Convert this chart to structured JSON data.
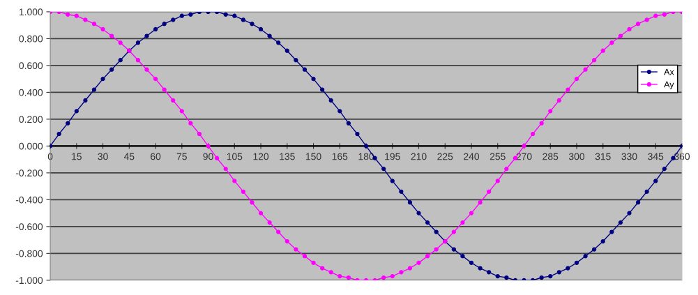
{
  "chart_data": {
    "type": "line",
    "x": [
      0,
      5,
      10,
      15,
      20,
      25,
      30,
      35,
      40,
      45,
      50,
      55,
      60,
      65,
      70,
      75,
      80,
      85,
      90,
      95,
      100,
      105,
      110,
      115,
      120,
      125,
      130,
      135,
      140,
      145,
      150,
      155,
      160,
      165,
      170,
      175,
      180,
      185,
      190,
      195,
      200,
      205,
      210,
      215,
      220,
      225,
      230,
      235,
      240,
      245,
      250,
      255,
      260,
      265,
      270,
      275,
      280,
      285,
      290,
      295,
      300,
      305,
      310,
      315,
      320,
      325,
      330,
      335,
      340,
      345,
      350,
      355,
      360
    ],
    "series": [
      {
        "name": "Ax",
        "color": "#000080",
        "values": [
          0,
          0.09,
          0.17,
          0.26,
          0.34,
          0.42,
          0.5,
          0.57,
          0.64,
          0.71,
          0.77,
          0.82,
          0.87,
          0.91,
          0.94,
          0.97,
          0.98,
          1,
          1,
          1,
          0.98,
          0.97,
          0.94,
          0.91,
          0.87,
          0.82,
          0.77,
          0.71,
          0.64,
          0.57,
          0.5,
          0.42,
          0.34,
          0.26,
          0.17,
          0.09,
          0,
          -0.09,
          -0.17,
          -0.26,
          -0.34,
          -0.42,
          -0.5,
          -0.57,
          -0.64,
          -0.71,
          -0.77,
          -0.82,
          -0.87,
          -0.91,
          -0.94,
          -0.97,
          -0.98,
          -1,
          -1,
          -1,
          -0.98,
          -0.97,
          -0.94,
          -0.91,
          -0.87,
          -0.82,
          -0.77,
          -0.71,
          -0.64,
          -0.57,
          -0.5,
          -0.42,
          -0.34,
          -0.26,
          -0.17,
          -0.09,
          0
        ]
      },
      {
        "name": "Ay",
        "color": "#ff00ff",
        "values": [
          1,
          1,
          0.98,
          0.97,
          0.94,
          0.91,
          0.87,
          0.82,
          0.77,
          0.71,
          0.64,
          0.57,
          0.5,
          0.42,
          0.34,
          0.26,
          0.17,
          0.09,
          0,
          -0.09,
          -0.17,
          -0.26,
          -0.34,
          -0.42,
          -0.5,
          -0.57,
          -0.64,
          -0.71,
          -0.77,
          -0.82,
          -0.87,
          -0.91,
          -0.94,
          -0.97,
          -0.98,
          -1,
          -1,
          -1,
          -0.98,
          -0.97,
          -0.94,
          -0.91,
          -0.87,
          -0.82,
          -0.77,
          -0.71,
          -0.64,
          -0.57,
          -0.5,
          -0.42,
          -0.34,
          -0.26,
          -0.17,
          -0.09,
          0,
          0.09,
          0.17,
          0.26,
          0.34,
          0.42,
          0.5,
          0.57,
          0.64,
          0.71,
          0.77,
          0.82,
          0.87,
          0.91,
          0.94,
          0.97,
          0.98,
          1,
          1
        ]
      }
    ],
    "xlim": [
      0,
      360
    ],
    "xticks": [
      0,
      15,
      30,
      45,
      60,
      75,
      90,
      105,
      120,
      135,
      150,
      165,
      180,
      195,
      210,
      225,
      240,
      255,
      270,
      285,
      300,
      315,
      330,
      345,
      360
    ],
    "ylim": [
      -1,
      1
    ],
    "yticks": [
      {
        "value": 1,
        "label": "1.000"
      },
      {
        "value": 0.8,
        "label": "0.800"
      },
      {
        "value": 0.6,
        "label": "0.600"
      },
      {
        "value": 0.4,
        "label": "0.400"
      },
      {
        "value": 0.2,
        "label": "0.200"
      },
      {
        "value": 0,
        "label": "0.000"
      },
      {
        "value": -0.2,
        "label": "-0.200"
      },
      {
        "value": -0.4,
        "label": "-0.400"
      },
      {
        "value": -0.6,
        "label": "-0.600"
      },
      {
        "value": -0.8,
        "label": "-0.800"
      },
      {
        "value": -1,
        "label": "-1.000"
      }
    ],
    "grid": "y",
    "legend": "right",
    "marker": "circle",
    "line_style": "solid"
  }
}
